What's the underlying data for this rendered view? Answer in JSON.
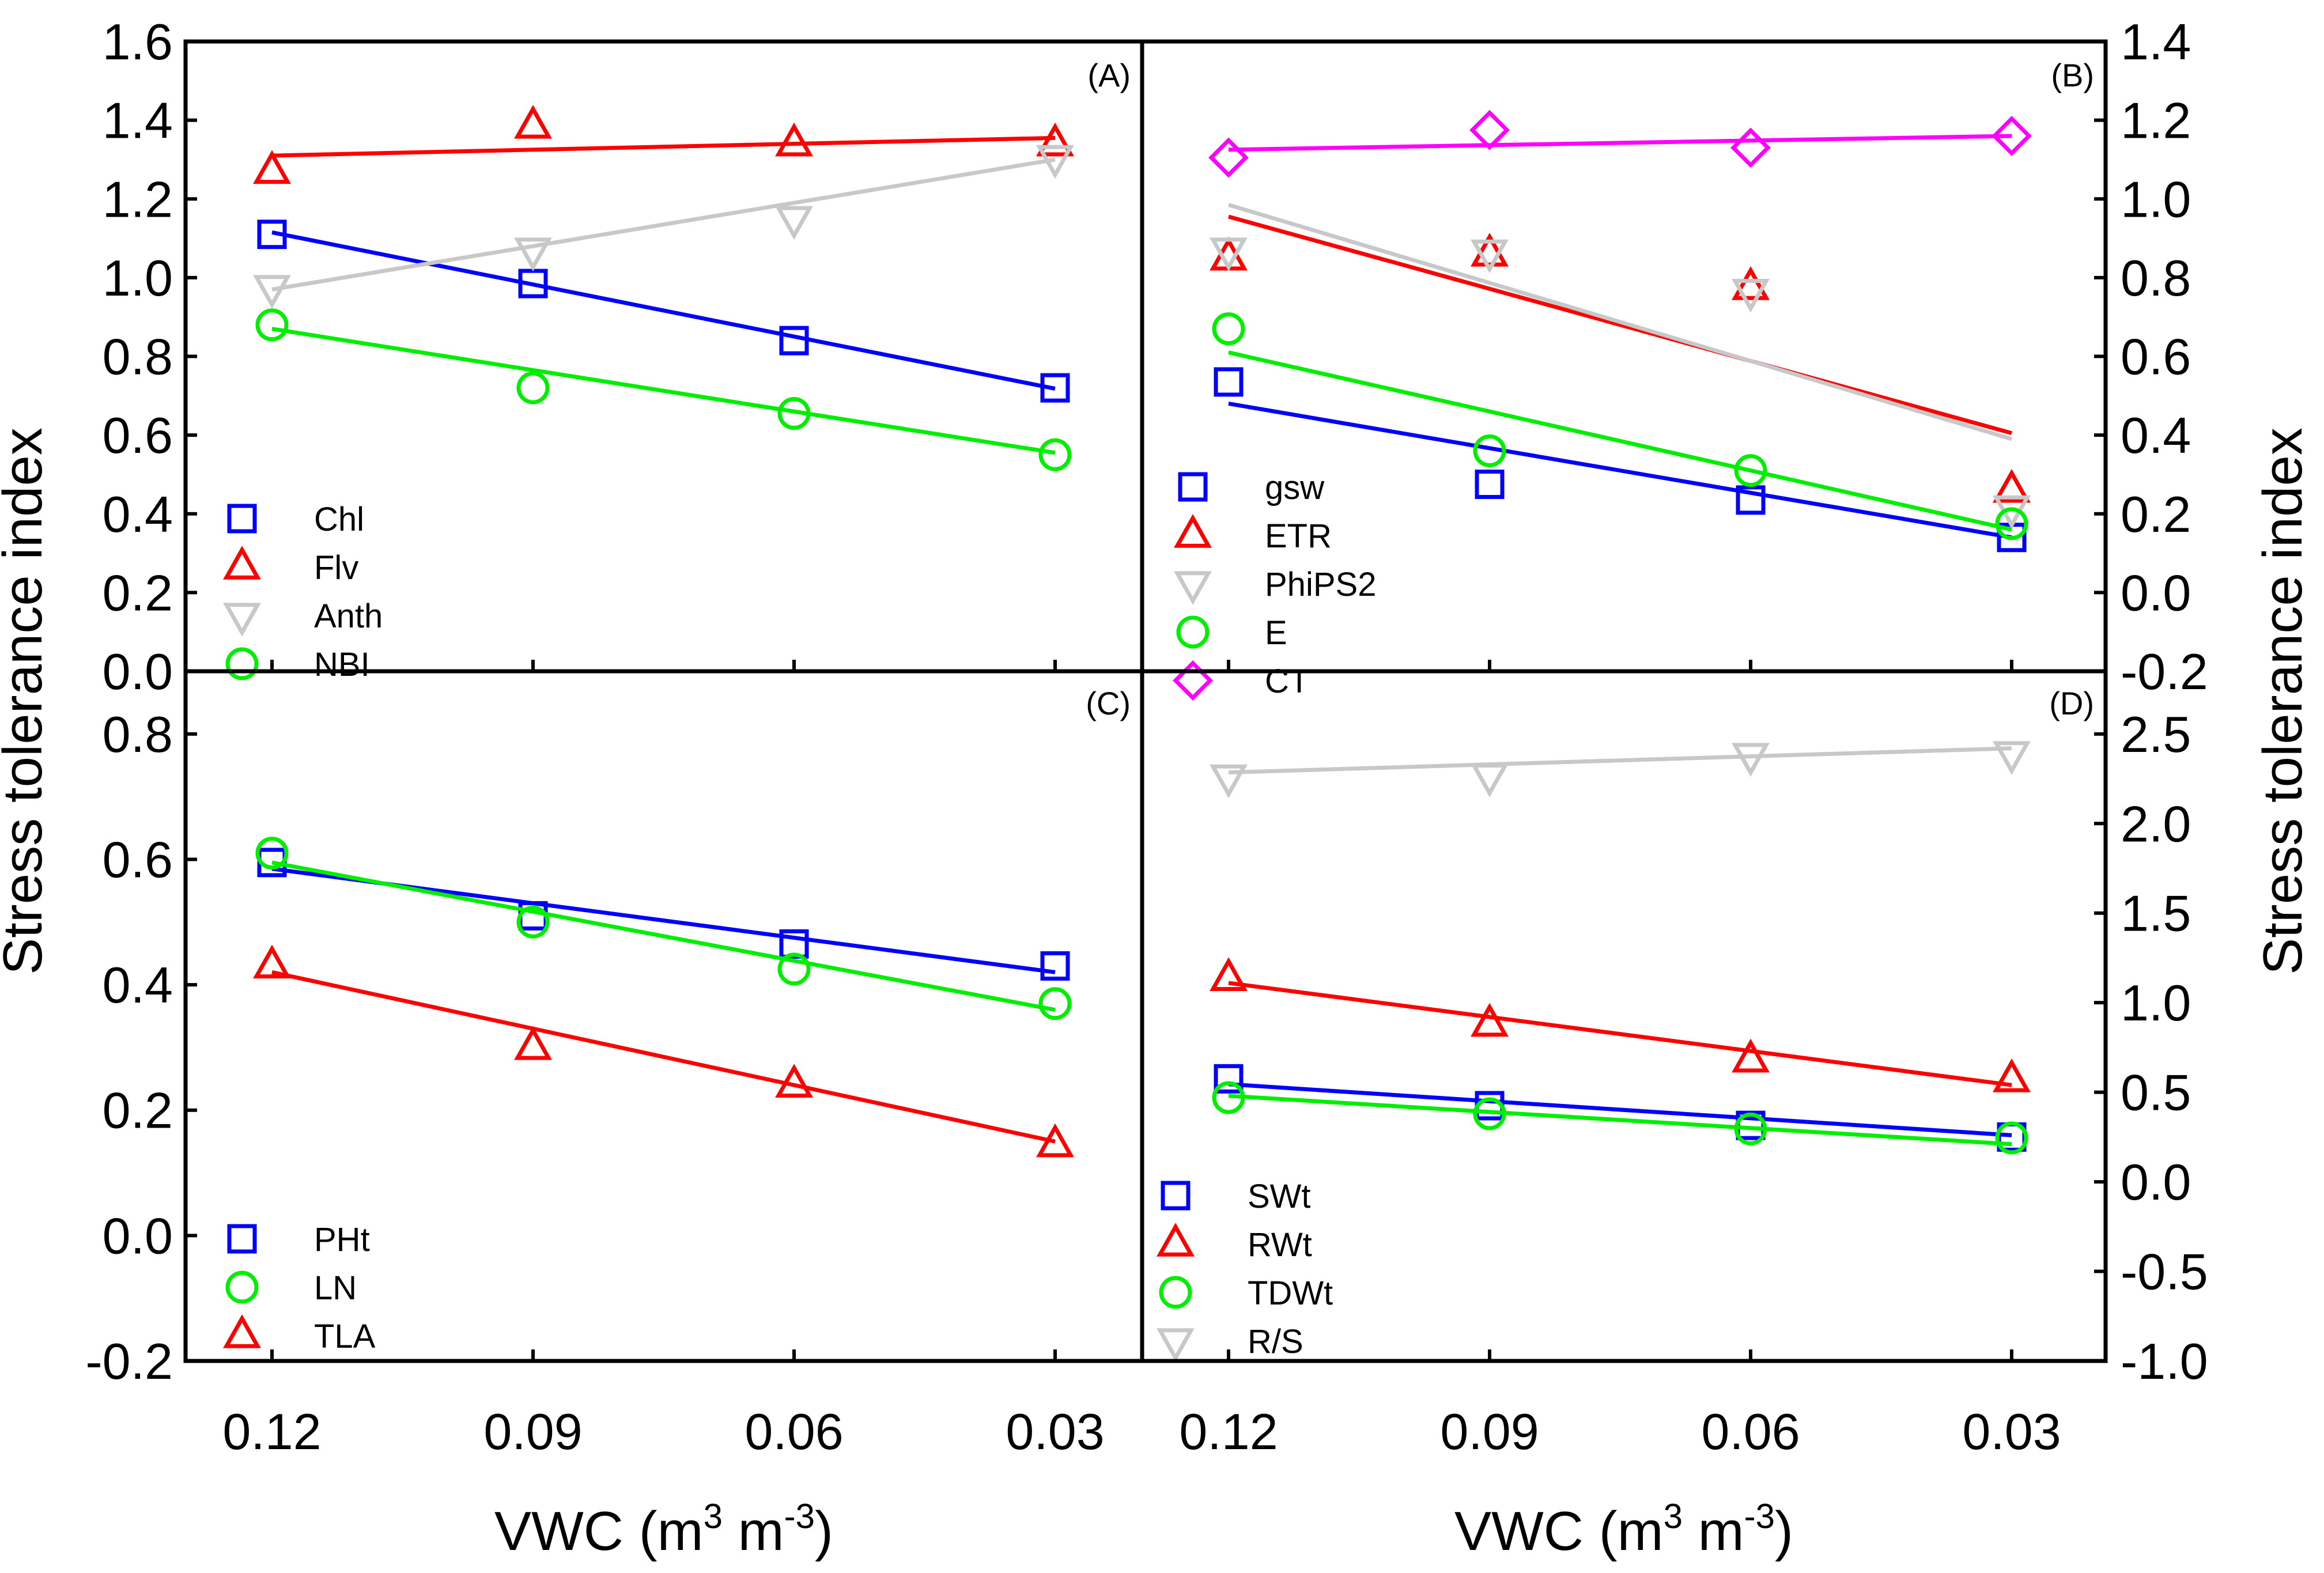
{
  "chart_data": [
    {
      "id": "A",
      "type": "scatter",
      "label": "(A)",
      "categories": [
        "0.12",
        "0.09",
        "0.06",
        "0.03"
      ],
      "x": [
        0.12,
        0.09,
        0.06,
        0.03
      ],
      "ylim": [
        0.0,
        1.6
      ],
      "yticks": [
        "0.0",
        "0.2",
        "0.4",
        "0.6",
        "0.8",
        "1.0",
        "1.2",
        "1.4",
        "1.6"
      ],
      "y_axis_side": "left",
      "legend_position": "bottom-left",
      "series": [
        {
          "name": "Chl",
          "marker": "square",
          "color": "#0000ff",
          "values": [
            1.11,
            0.985,
            0.84,
            0.72
          ],
          "fit": [
            1.115,
            0.983,
            0.85,
            0.718
          ]
        },
        {
          "name": "Flv",
          "marker": "triangle-up",
          "color": "#ff0000",
          "values": [
            1.27,
            1.385,
            1.34,
            1.34
          ],
          "fit": [
            1.31,
            1.325,
            1.34,
            1.355
          ]
        },
        {
          "name": "Anth",
          "marker": "triangle-down",
          "color": "#c8c8c8",
          "values": [
            0.975,
            1.07,
            1.15,
            1.305
          ],
          "fit": [
            0.97,
            1.08,
            1.19,
            1.3
          ]
        },
        {
          "name": "NBI",
          "marker": "circle",
          "color": "#00ee00",
          "values": [
            0.88,
            0.72,
            0.655,
            0.55
          ],
          "fit": [
            0.87,
            0.765,
            0.66,
            0.555
          ]
        }
      ]
    },
    {
      "id": "B",
      "type": "scatter",
      "label": "(B)",
      "categories": [
        "0.12",
        "0.09",
        "0.06",
        "0.03"
      ],
      "x": [
        0.12,
        0.09,
        0.06,
        0.03
      ],
      "ylim": [
        -0.2,
        1.4
      ],
      "yticks": [
        "-0.2",
        "0.0",
        "0.2",
        "0.4",
        "0.6",
        "0.8",
        "1.0",
        "1.2",
        "1.4"
      ],
      "y_axis_side": "right",
      "legend_position": "bottom-left",
      "series": [
        {
          "name": "gsw",
          "marker": "square",
          "color": "#0000ff",
          "values": [
            0.535,
            0.275,
            0.235,
            0.14
          ],
          "fit": [
            0.48,
            0.365,
            0.255,
            0.14
          ]
        },
        {
          "name": "ETR",
          "marker": "triangle-up",
          "color": "#ff0000",
          "values": [
            0.85,
            0.86,
            0.775,
            0.26
          ],
          "fit": [
            0.955,
            0.77,
            0.59,
            0.405
          ]
        },
        {
          "name": "PhiPS2",
          "marker": "triangle-down",
          "color": "#c8c8c8",
          "values": [
            0.87,
            0.865,
            0.765,
            0.215
          ],
          "fit": [
            0.985,
            0.79,
            0.59,
            0.39
          ]
        },
        {
          "name": "E",
          "marker": "circle",
          "color": "#00ee00",
          "values": [
            0.67,
            0.36,
            0.31,
            0.175
          ],
          "fit": [
            0.61,
            0.45,
            0.31,
            0.16
          ]
        },
        {
          "name": "CT",
          "marker": "diamond",
          "color": "#ff00ff",
          "values": [
            1.105,
            1.175,
            1.13,
            1.16
          ],
          "fit": [
            1.125,
            1.137,
            1.148,
            1.16
          ]
        }
      ]
    },
    {
      "id": "C",
      "type": "scatter",
      "label": "(C)",
      "categories": [
        "0.12",
        "0.09",
        "0.06",
        "0.03"
      ],
      "x": [
        0.12,
        0.09,
        0.06,
        0.03
      ],
      "ylim": [
        -0.2,
        0.9
      ],
      "yticks": [
        "-0.2",
        "0.0",
        "0.2",
        "0.4",
        "0.6",
        "0.8"
      ],
      "y_axis_side": "left",
      "legend_position": "bottom-left",
      "series": [
        {
          "name": "PHt",
          "marker": "square",
          "color": "#0000ff",
          "values": [
            0.595,
            0.51,
            0.465,
            0.43
          ],
          "fit": [
            0.585,
            0.53,
            0.475,
            0.42
          ]
        },
        {
          "name": "LN",
          "marker": "circle",
          "color": "#00ee00",
          "values": [
            0.61,
            0.5,
            0.425,
            0.37
          ],
          "fit": [
            0.595,
            0.515,
            0.44,
            0.36
          ]
        },
        {
          "name": "TLA",
          "marker": "triangle-up",
          "color": "#ff0000",
          "values": [
            0.43,
            0.3,
            0.24,
            0.145
          ],
          "fit": [
            0.42,
            0.33,
            0.24,
            0.15
          ]
        }
      ]
    },
    {
      "id": "D",
      "type": "scatter",
      "label": "(D)",
      "categories": [
        "0.12",
        "0.09",
        "0.06",
        "0.03"
      ],
      "x": [
        0.12,
        0.09,
        0.06,
        0.03
      ],
      "ylim": [
        -1.0,
        2.85
      ],
      "yticks": [
        "-1.0",
        "-0.5",
        "0.0",
        "0.5",
        "1.0",
        "1.5",
        "2.0",
        "2.5"
      ],
      "y_axis_side": "right",
      "legend_position": "bottom-left",
      "series": [
        {
          "name": "SWt",
          "marker": "square",
          "color": "#0000ff",
          "values": [
            0.575,
            0.425,
            0.315,
            0.25
          ],
          "fit": [
            0.545,
            0.45,
            0.355,
            0.26
          ]
        },
        {
          "name": "RWt",
          "marker": "triangle-up",
          "color": "#ff0000",
          "values": [
            1.135,
            0.88,
            0.68,
            0.57
          ],
          "fit": [
            1.11,
            0.92,
            0.73,
            0.54
          ]
        },
        {
          "name": "TDWt",
          "marker": "circle",
          "color": "#00ee00",
          "values": [
            0.47,
            0.38,
            0.295,
            0.245
          ],
          "fit": [
            0.48,
            0.39,
            0.3,
            0.21
          ]
        },
        {
          "name": "R/S",
          "marker": "triangle-down",
          "color": "#c8c8c8",
          "values": [
            2.26,
            2.265,
            2.38,
            2.39
          ],
          "fit": [
            2.285,
            2.33,
            2.375,
            2.42
          ]
        }
      ]
    }
  ],
  "axes": {
    "xlabel": {
      "pre": "VWC (m",
      "sup1": "3",
      "mid": " m",
      "sup2": "-3",
      "post": ")"
    },
    "ylabel_left": "Stress tolerance index",
    "ylabel_right": "Stress tolerance index"
  }
}
